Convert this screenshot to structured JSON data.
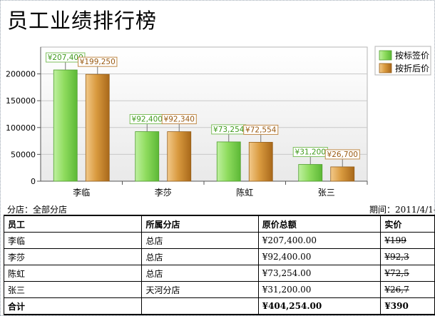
{
  "report": {
    "title": "员工业绩排行榜",
    "branch_label": "分店：",
    "branch_value": "全部分店",
    "period_label": "期间：",
    "period_value": "2011/4/1-"
  },
  "colors": {
    "list_price": "#7ccf4e",
    "discount_price": "#cf9231"
  },
  "chart_data": {
    "type": "bar",
    "categories": [
      "李临",
      "李莎",
      "陈虹",
      "张三"
    ],
    "series": [
      {
        "name": "按标签价",
        "values": [
          207400,
          92400,
          73254,
          31200
        ],
        "labels": [
          "¥207,400",
          "¥92,400",
          "¥73,254",
          "¥31,200"
        ]
      },
      {
        "name": "按折后价",
        "values": [
          199250,
          92340,
          72554,
          26700
        ],
        "labels": [
          "¥199,250",
          "¥92,340",
          "¥72,554",
          "¥26,700"
        ]
      }
    ],
    "ylim": [
      0,
      250000
    ],
    "yticks": [
      "0",
      "50000",
      "100000",
      "150000",
      "200000"
    ],
    "ytick_values": [
      0,
      50000,
      100000,
      150000,
      200000
    ],
    "grid": true,
    "legend_position": "top-right"
  },
  "table": {
    "headers": [
      "员工",
      "所属分店",
      "原价总额",
      "实价"
    ],
    "rows": [
      [
        "李临",
        "总店",
        "¥207,400.00",
        "¥199"
      ],
      [
        "李莎",
        "总店",
        "¥92,400.00",
        "¥92,3"
      ],
      [
        "陈虹",
        "总店",
        "¥73,254.00",
        "¥72,5"
      ],
      [
        "张三",
        "天河分店",
        "¥31,200.00",
        "¥26,7"
      ]
    ],
    "total": [
      "合计",
      "",
      "¥404,254.00",
      "¥390"
    ]
  }
}
